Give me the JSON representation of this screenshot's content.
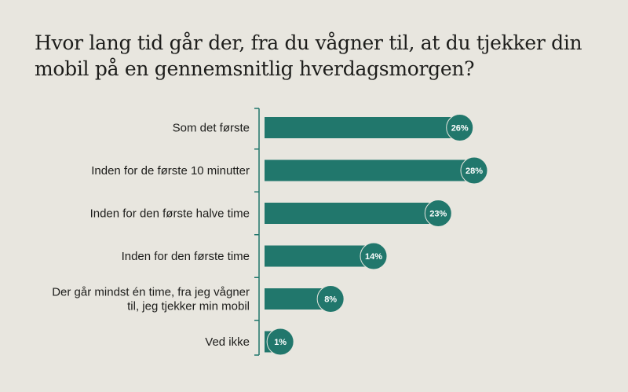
{
  "colors": {
    "background": "#e8e6df",
    "bar": "#21776c",
    "badge": "#21776c",
    "axis": "#21776c",
    "text": "#1d1d1b"
  },
  "chart_data": {
    "type": "bar",
    "orientation": "horizontal",
    "title": "Hvor lang tid går der, fra du vågner til, at du tjekker din mobil på en gennemsnitlig hverdagsmorgen?",
    "categories": [
      [
        "Som det første"
      ],
      [
        "Inden for de første 10 minutter"
      ],
      [
        "Inden for den første halve time"
      ],
      [
        "Inden for den første time"
      ],
      [
        "Der går mindst én time, fra jeg vågner",
        "til, jeg tjekker min mobil"
      ],
      [
        "Ved ikke"
      ]
    ],
    "values": [
      26,
      28,
      23,
      14,
      8,
      1
    ],
    "value_labels": [
      "26%",
      "28%",
      "23%",
      "14%",
      "8%",
      "1%"
    ],
    "unit": "%",
    "xlim": [
      0,
      28
    ],
    "grid": false,
    "legend": "none"
  }
}
